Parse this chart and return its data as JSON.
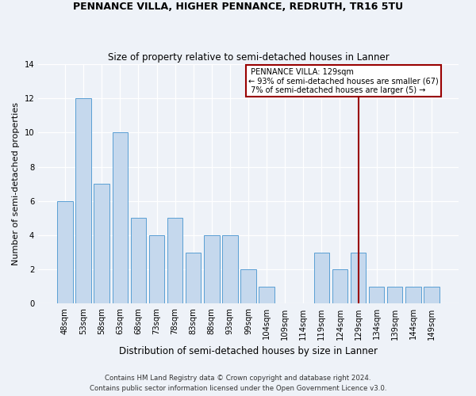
{
  "title1": "PENNANCE VILLA, HIGHER PENNANCE, REDRUTH, TR16 5TU",
  "title2": "Size of property relative to semi-detached houses in Lanner",
  "xlabel": "Distribution of semi-detached houses by size in Lanner",
  "ylabel": "Number of semi-detached properties",
  "categories": [
    "48sqm",
    "53sqm",
    "58sqm",
    "63sqm",
    "68sqm",
    "73sqm",
    "78sqm",
    "83sqm",
    "88sqm",
    "93sqm",
    "99sqm",
    "104sqm",
    "109sqm",
    "114sqm",
    "119sqm",
    "124sqm",
    "129sqm",
    "134sqm",
    "139sqm",
    "144sqm",
    "149sqm"
  ],
  "values": [
    6,
    12,
    7,
    10,
    5,
    4,
    5,
    3,
    4,
    4,
    2,
    1,
    0,
    0,
    3,
    2,
    3,
    1,
    1,
    1,
    1
  ],
  "bar_color": "#c5d8ed",
  "bar_edge_color": "#5a9fd4",
  "highlight_index": 16,
  "highlight_label": "PENNANCE VILLA: 129sqm",
  "annotation_line1": "← 93% of semi-detached houses are smaller (67)",
  "annotation_line2": "7% of semi-detached houses are larger (5) →",
  "vline_color": "#990000",
  "box_color": "#990000",
  "ylim": [
    0,
    14
  ],
  "yticks": [
    0,
    2,
    4,
    6,
    8,
    10,
    12,
    14
  ],
  "footnote1": "Contains HM Land Registry data © Crown copyright and database right 2024.",
  "footnote2": "Contains public sector information licensed under the Open Government Licence v3.0.",
  "bg_color": "#eef2f8"
}
